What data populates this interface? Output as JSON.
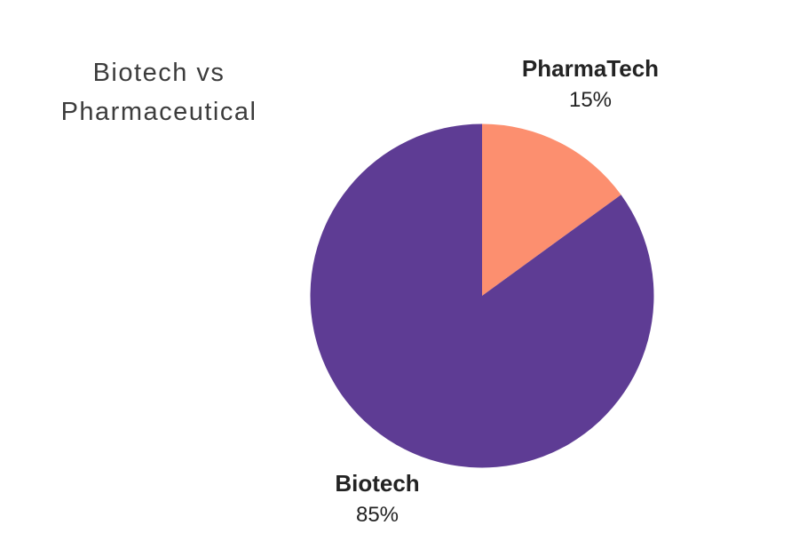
{
  "header": {
    "title_line1": "Biotech vs",
    "title_line2": "Pharmaceutical"
  },
  "chart_data": {
    "type": "pie",
    "title": "Biotech vs Pharmaceutical",
    "legend": "none",
    "background_color": "#FFFFFF",
    "start_angle_deg": 0,
    "direction": "clockwise",
    "slices": [
      {
        "label": "PharmaTech",
        "value": 15,
        "percent_label": "15%",
        "color": "#FC8F6F"
      },
      {
        "label": "Biotech",
        "value": 85,
        "percent_label": "85%",
        "color": "#5E3C94"
      }
    ],
    "title_color": "#3C3C3C",
    "label_color": "#232323"
  }
}
